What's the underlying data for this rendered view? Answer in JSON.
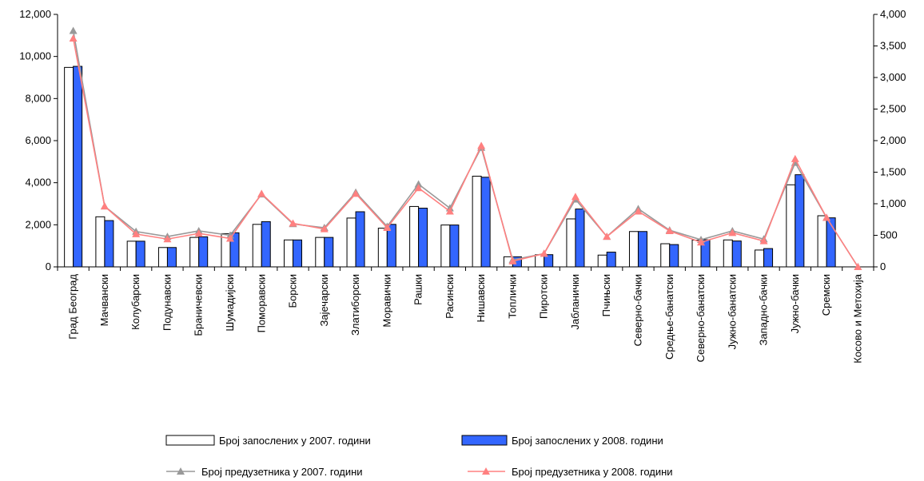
{
  "chart_data": {
    "type": "bar+line",
    "categories": [
      "Град Београд",
      "Мачвански",
      "Колубарски",
      "Подунавски",
      "Браничевски",
      "Шумадијски",
      "Поморавски",
      "Борски",
      "Зајечарски",
      "Златиборски",
      "Моравички",
      "Рашки",
      "Расински",
      "Нишавски",
      "Топлички",
      "Пиротски",
      "Јабланички",
      "Пчињски",
      "Северно-бачки",
      "Средње-банатски",
      "Северно-банатски",
      "Јужно-банатски",
      "Западно-бачки",
      "Јужно-бачки",
      "Сремски",
      "Косово и Метохија"
    ],
    "y_left": {
      "min": 0,
      "max": 12000,
      "ticks": [
        "0",
        "2,000",
        "4,000",
        "6,000",
        "8,000",
        "10,000",
        "12,000"
      ]
    },
    "y_right": {
      "min": 0,
      "max": 4000,
      "ticks": [
        "0",
        "500",
        "1,000",
        "1,500",
        "2,000",
        "2,500",
        "3,000",
        "3,500",
        "4,000"
      ]
    },
    "series": [
      {
        "name": "Број запослених у 2007. години",
        "kind": "bar",
        "axis": "left",
        "color": "#ffffff",
        "values": [
          9480,
          2380,
          1220,
          920,
          1400,
          1580,
          2020,
          1280,
          1400,
          2320,
          1840,
          2870,
          1990,
          4310,
          480,
          580,
          2280,
          560,
          1680,
          1100,
          1270,
          1280,
          800,
          3900,
          2430,
          0
        ]
      },
      {
        "name": "Број запослених у 2008. години",
        "kind": "bar",
        "axis": "left",
        "color": "#3366ff",
        "values": [
          9530,
          2200,
          1220,
          920,
          1430,
          1620,
          2150,
          1280,
          1400,
          2620,
          2020,
          2790,
          1990,
          4260,
          480,
          580,
          2750,
          700,
          1680,
          1060,
          1290,
          1230,
          870,
          4380,
          2330,
          0
        ]
      },
      {
        "name": "Број предузетника у 2007. години",
        "kind": "line",
        "axis": "right",
        "color": "#999999",
        "values": [
          3740,
          960,
          560,
          480,
          570,
          500,
          1150,
          680,
          620,
          1180,
          640,
          1310,
          930,
          1890,
          110,
          210,
          1070,
          480,
          920,
          580,
          430,
          570,
          440,
          1650,
          780,
          0
        ]
      },
      {
        "name": "Број предузетника у 2008. години",
        "kind": "line",
        "axis": "right",
        "color": "#ff8080",
        "values": [
          3620,
          960,
          520,
          440,
          530,
          450,
          1160,
          690,
          600,
          1160,
          620,
          1250,
          880,
          1920,
          90,
          210,
          1110,
          480,
          880,
          570,
          390,
          540,
          410,
          1710,
          780,
          0
        ]
      }
    ],
    "legend_position": "bottom",
    "grid": false
  }
}
